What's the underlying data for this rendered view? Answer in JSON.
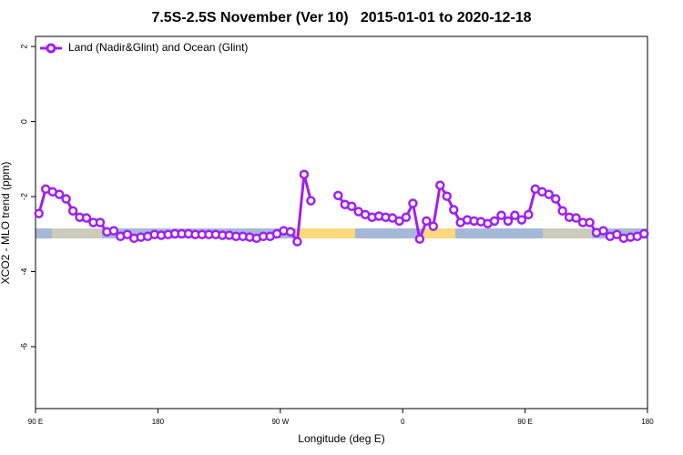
{
  "chart_data": {
    "type": "line",
    "title": "7.5S-2.5S November (Ver 10)   2015-01-01 to 2020-12-18",
    "x_label": "Longitude (deg E)",
    "y_label": "XCO2 - MLO trend (ppm)",
    "x": [
      92.5,
      97.5,
      102.5,
      107.5,
      112.5,
      117.5,
      122.5,
      127.5,
      132.5,
      137.5,
      142.5,
      147.5,
      152.5,
      157.5,
      162.5,
      167.5,
      172.5,
      177.5,
      182.5,
      187.5,
      192.5,
      197.5,
      202.5,
      207.5,
      212.5,
      217.5,
      222.5,
      227.5,
      232.5,
      237.5,
      242.5,
      247.5,
      252.5,
      257.5,
      262.5,
      267.5,
      272.5,
      277.5,
      282.5,
      287.5,
      292.5,
      297.5,
      302.5,
      307.5,
      312.5,
      317.5,
      322.5,
      327.5,
      332.5,
      337.5,
      342.5,
      347.5,
      352.5,
      357.5,
      362.5,
      367.5,
      372.5,
      377.5,
      382.5,
      387.5,
      392.5,
      397.5,
      402.5,
      407.5,
      412.5,
      417.5,
      422.5,
      427.5,
      432.5,
      437.5,
      442.5,
      447.5,
      452.5,
      457.5,
      462.5,
      467.5,
      472.5,
      477.5,
      482.5,
      487.5,
      492.5,
      497.5,
      502.5,
      507.5,
      512.5,
      517.5,
      522.5,
      527.5,
      532.5,
      537.5
    ],
    "series": [
      {
        "name": "Land (Nadir&Glint) and Ocean (Glint)",
        "color": "#a020f0",
        "values": [
          -2.45,
          -1.8,
          -1.87,
          -1.94,
          -2.06,
          -2.38,
          -2.55,
          -2.57,
          -2.69,
          -2.69,
          -2.94,
          -2.91,
          -3.06,
          -3.01,
          -3.11,
          -3.08,
          -3.06,
          -3.01,
          -3.03,
          -3.01,
          -2.99,
          -2.99,
          -2.99,
          -3.01,
          -3.01,
          -3.01,
          -3.01,
          -3.03,
          -3.03,
          -3.06,
          -3.06,
          -3.08,
          -3.11,
          -3.06,
          -3.06,
          -2.99,
          -2.91,
          -2.94,
          -3.2,
          -1.41,
          -2.11,
          null,
          null,
          null,
          -1.97,
          -2.21,
          -2.26,
          -2.4,
          -2.48,
          -2.55,
          -2.52,
          -2.55,
          -2.57,
          -2.65,
          -2.55,
          -2.18,
          -3.13,
          -2.65,
          -2.79,
          -1.7,
          -1.99,
          -2.35,
          -2.69,
          -2.62,
          -2.65,
          -2.67,
          -2.72,
          -2.65,
          -2.5,
          -2.65,
          -2.5,
          -2.62,
          -2.48,
          -1.8,
          -1.87,
          -1.94,
          -2.06,
          -2.38,
          -2.55,
          -2.57,
          -2.69,
          -2.69,
          -2.96,
          -2.91,
          -3.06,
          -3.01,
          -3.11,
          -3.08,
          -3.06,
          -2.99
        ]
      }
    ],
    "xlim": [
      90,
      540
    ],
    "xticks": [
      {
        "value": 90,
        "label": "90 E"
      },
      {
        "value": 180,
        "label": "180"
      },
      {
        "value": 270,
        "label": "90 W"
      },
      {
        "value": 360,
        "label": "0"
      },
      {
        "value": 450,
        "label": "90 E"
      },
      {
        "value": 540,
        "label": "180"
      }
    ],
    "ylim": [
      -7.65,
      2.27
    ],
    "yticks": [
      2,
      0,
      -2,
      -4,
      -6
    ],
    "legend": "top-left"
  }
}
